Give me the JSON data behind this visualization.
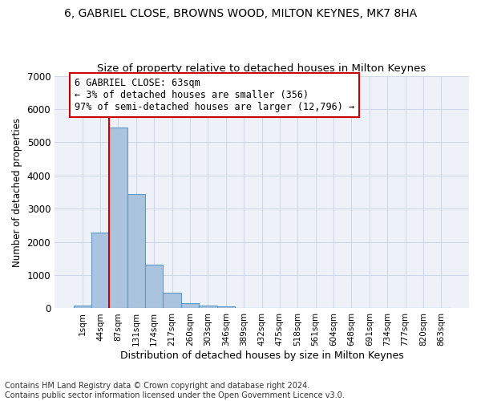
{
  "title1": "6, GABRIEL CLOSE, BROWNS WOOD, MILTON KEYNES, MK7 8HA",
  "title2": "Size of property relative to detached houses in Milton Keynes",
  "xlabel": "Distribution of detached houses by size in Milton Keynes",
  "ylabel": "Number of detached properties",
  "bin_labels": [
    "1sqm",
    "44sqm",
    "87sqm",
    "131sqm",
    "174sqm",
    "217sqm",
    "260sqm",
    "303sqm",
    "346sqm",
    "389sqm",
    "432sqm",
    "475sqm",
    "518sqm",
    "561sqm",
    "604sqm",
    "648sqm",
    "691sqm",
    "734sqm",
    "777sqm",
    "820sqm",
    "863sqm"
  ],
  "bar_values": [
    80,
    2280,
    5450,
    3450,
    1320,
    470,
    160,
    90,
    55,
    0,
    0,
    0,
    0,
    0,
    0,
    0,
    0,
    0,
    0,
    0,
    0
  ],
  "bar_color": "#aac4e0",
  "bar_edgecolor": "#5a9ac8",
  "grid_color": "#d0d8e8",
  "background_color": "#eef2f8",
  "vline_x": 1.5,
  "vline_color": "#cc0000",
  "annotation_text": "6 GABRIEL CLOSE: 63sqm\n← 3% of detached houses are smaller (356)\n97% of semi-detached houses are larger (12,796) →",
  "annotation_box_color": "#ffffff",
  "annotation_box_edgecolor": "#cc0000",
  "ylim": [
    0,
    7000
  ],
  "yticks": [
    0,
    1000,
    2000,
    3000,
    4000,
    5000,
    6000,
    7000
  ],
  "footnote": "Contains HM Land Registry data © Crown copyright and database right 2024.\nContains public sector information licensed under the Open Government Licence v3.0.",
  "title_fontsize": 10,
  "subtitle_fontsize": 9.5,
  "annotation_fontsize": 8.5,
  "footnote_fontsize": 7
}
